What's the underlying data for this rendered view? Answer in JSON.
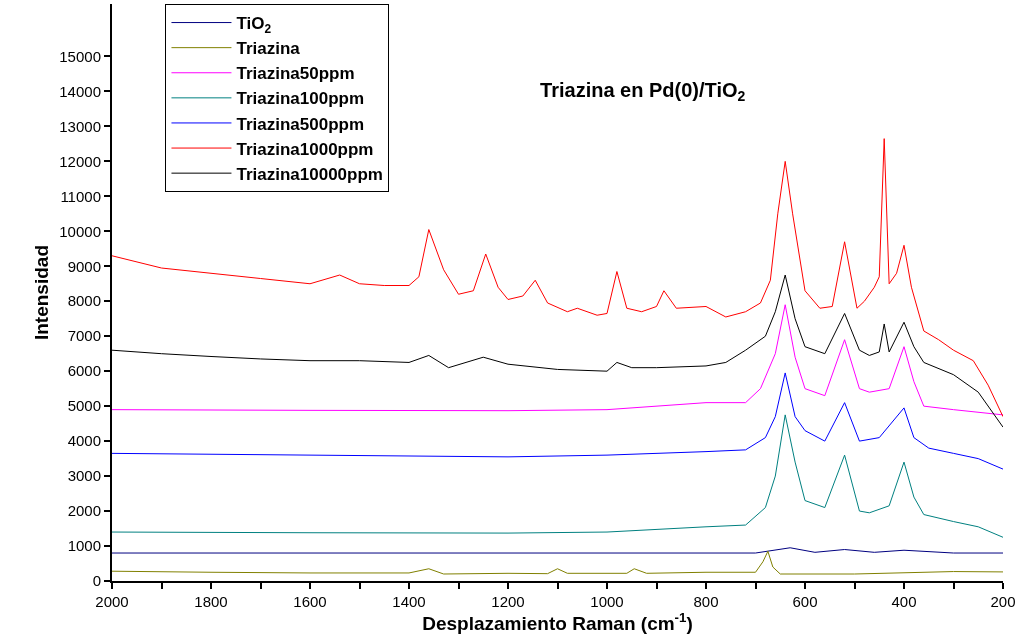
{
  "chart_data": {
    "type": "line",
    "title": "Triazina en Pd(0)/TiO$_{2}$",
    "xlabel": "Desplazamiento Raman (cm$^{-1}$)",
    "ylabel": "Intensidad",
    "xlim": [
      2000,
      200
    ],
    "ylim": [
      0,
      16500
    ],
    "xticks": [
      2000,
      {
        "value": 1900,
        "label": null
      },
      1800,
      {
        "value": 1700,
        "label": null
      },
      1600,
      {
        "value": 1500,
        "label": null
      },
      1400,
      {
        "value": 1300,
        "label": null
      },
      1200,
      {
        "value": 1100,
        "label": null
      },
      1000,
      {
        "value": 900,
        "label": null
      },
      800,
      {
        "value": 700,
        "label": null
      },
      600,
      {
        "value": 500,
        "label": null
      },
      400,
      {
        "value": 300,
        "label": null
      },
      200
    ],
    "yticks": [
      0,
      1000,
      2000,
      3000,
      4000,
      5000,
      6000,
      7000,
      8000,
      9000,
      10000,
      11000,
      12000,
      13000,
      14000,
      15000
    ],
    "legend": "top left",
    "marker": "none",
    "line_style": "solid",
    "series": [
      {
        "name": "TiO$_{2}$",
        "color": "#000080",
        "x": [
          2000,
          1000,
          700,
          630,
          580,
          520,
          460,
          400,
          300,
          200
        ],
        "values": [
          800,
          800,
          800,
          950,
          820,
          900,
          820,
          880,
          800,
          800
        ]
      },
      {
        "name": "Triazina",
        "color": "#808000",
        "x": [
          2000,
          1800,
          1600,
          1400,
          1360,
          1330,
          1200,
          1120,
          1100,
          1080,
          960,
          945,
          920,
          800,
          700,
          685,
          675,
          665,
          650,
          500,
          300,
          200
        ],
        "values": [
          280,
          250,
          230,
          230,
          350,
          200,
          220,
          210,
          350,
          220,
          220,
          350,
          220,
          250,
          250,
          550,
          850,
          400,
          200,
          200,
          270,
          260
        ]
      },
      {
        "name": "Triazina50ppm",
        "color": "#ff00ff",
        "x": [
          2000,
          1600,
          1200,
          1000,
          800,
          720,
          690,
          660,
          640,
          620,
          600,
          560,
          520,
          490,
          470,
          430,
          400,
          380,
          360,
          300,
          200
        ],
        "values": [
          4900,
          4880,
          4870,
          4900,
          5100,
          5100,
          5500,
          6500,
          7900,
          6400,
          5500,
          5300,
          6900,
          5500,
          5400,
          5500,
          6700,
          5700,
          5000,
          4900,
          4750
        ]
      },
      {
        "name": "Triazina100ppm",
        "color": "#008080",
        "x": [
          2000,
          1600,
          1200,
          1000,
          800,
          720,
          680,
          660,
          640,
          620,
          600,
          560,
          520,
          490,
          470,
          430,
          400,
          380,
          360,
          300,
          250,
          200
        ],
        "values": [
          1400,
          1380,
          1370,
          1400,
          1550,
          1600,
          2100,
          3000,
          4750,
          3400,
          2300,
          2100,
          3600,
          2000,
          1950,
          2150,
          3400,
          2400,
          1900,
          1700,
          1550,
          1250
        ]
      },
      {
        "name": "Triazina500ppm",
        "color": "#0000ff",
        "x": [
          2000,
          1600,
          1200,
          1000,
          800,
          720,
          680,
          660,
          640,
          620,
          600,
          560,
          520,
          490,
          450,
          400,
          380,
          350,
          300,
          250,
          200
        ],
        "values": [
          3650,
          3600,
          3550,
          3600,
          3700,
          3750,
          4100,
          4700,
          5950,
          4700,
          4300,
          4000,
          5100,
          4000,
          4100,
          4950,
          4100,
          3800,
          3650,
          3500,
          3200
        ]
      },
      {
        "name": "Triazina1000ppm",
        "color": "#ff0000",
        "x": [
          2000,
          1900,
          1800,
          1700,
          1600,
          1540,
          1500,
          1450,
          1400,
          1380,
          1360,
          1330,
          1300,
          1270,
          1245,
          1220,
          1200,
          1170,
          1145,
          1120,
          1080,
          1060,
          1020,
          1000,
          980,
          960,
          930,
          900,
          885,
          860,
          800,
          760,
          720,
          690,
          670,
          655,
          640,
          625,
          600,
          570,
          545,
          520,
          495,
          480,
          460,
          450,
          440,
          430,
          415,
          400,
          385,
          360,
          330,
          300,
          260,
          230,
          200
        ],
        "values": [
          9300,
          8950,
          8800,
          8650,
          8500,
          8750,
          8500,
          8450,
          8450,
          8700,
          10050,
          8900,
          8200,
          8300,
          9350,
          8400,
          8050,
          8150,
          8600,
          7950,
          7700,
          7800,
          7600,
          7650,
          8850,
          7800,
          7700,
          7850,
          8300,
          7800,
          7850,
          7550,
          7700,
          7950,
          8600,
          10500,
          12000,
          10500,
          8300,
          7800,
          7850,
          9700,
          7800,
          8000,
          8400,
          8700,
          12650,
          8500,
          8800,
          9600,
          8400,
          7150,
          6900,
          6600,
          6300,
          5600,
          4700
        ]
      },
      {
        "name": "Triazina10000ppm",
        "color": "#000000",
        "x": [
          2000,
          1900,
          1800,
          1700,
          1600,
          1500,
          1400,
          1360,
          1320,
          1250,
          1200,
          1100,
          1000,
          980,
          950,
          900,
          800,
          760,
          720,
          680,
          660,
          640,
          620,
          600,
          560,
          520,
          490,
          470,
          450,
          440,
          430,
          400,
          380,
          360,
          300,
          250,
          200
        ],
        "values": [
          6600,
          6500,
          6420,
          6350,
          6300,
          6300,
          6250,
          6450,
          6100,
          6400,
          6200,
          6050,
          6000,
          6250,
          6100,
          6100,
          6150,
          6250,
          6600,
          7000,
          7700,
          8750,
          7500,
          6700,
          6500,
          7650,
          6600,
          6450,
          6550,
          7350,
          6550,
          7400,
          6700,
          6250,
          5900,
          5400,
          4400
        ]
      }
    ]
  }
}
